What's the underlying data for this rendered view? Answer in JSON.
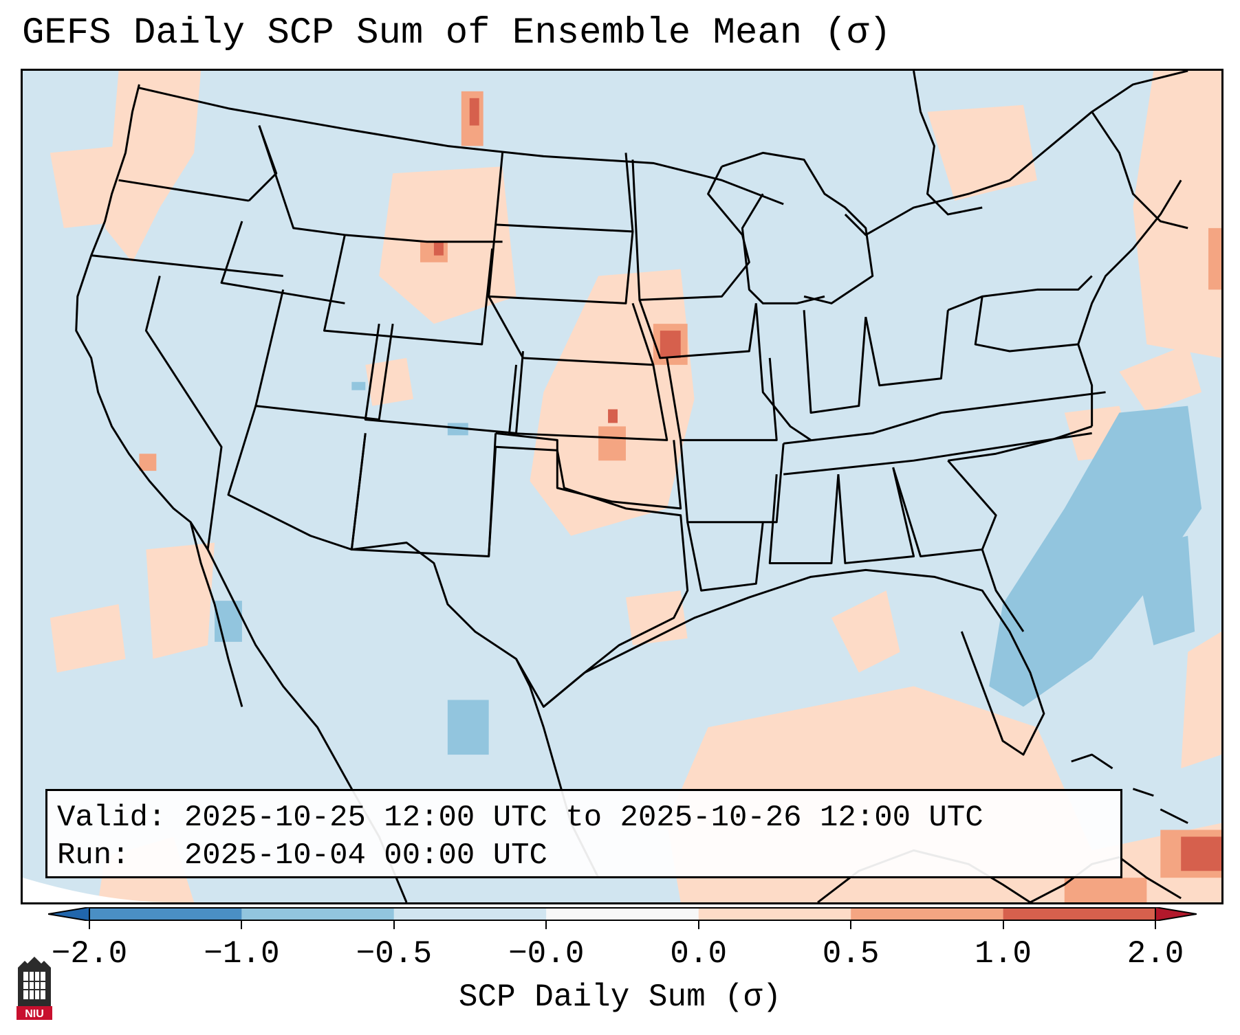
{
  "title": "GEFS Daily SCP Sum of Ensemble Mean (σ)",
  "info": {
    "valid_label": "Valid:",
    "valid_value": "2025-10-25 12:00 UTC to 2025-10-26 12:00 UTC",
    "run_label": "Run:",
    "run_value": "2025-10-04 00:00 UTC"
  },
  "colorbar": {
    "label": "SCP Daily Sum (σ)",
    "ticks": [
      "−2.0",
      "−1.0",
      "−0.5",
      "−0.0",
      "0.0",
      "0.5",
      "1.0",
      "2.0"
    ],
    "bins": [
      {
        "from": "-2.0",
        "to": "-1.0",
        "color": "#4a8fc4"
      },
      {
        "from": "-1.0",
        "to": "-0.5",
        "color": "#92c5de"
      },
      {
        "from": "-0.5",
        "to": "-0.0",
        "color": "#d1e5f0"
      },
      {
        "from": "-0.0",
        "to": "0.0",
        "color": "#f7f7f7"
      },
      {
        "from": "0.0",
        "to": "0.5",
        "color": "#fddbc7"
      },
      {
        "from": "0.5",
        "to": "1.0",
        "color": "#f4a582"
      },
      {
        "from": "1.0",
        "to": "2.0",
        "color": "#d6604d"
      }
    ],
    "under_color": "#2166ac",
    "over_color": "#b2182b"
  },
  "logo_text": "NIU",
  "map": {
    "background_color": "#d1e5f0",
    "positive_color": "#fddbc7",
    "moderate_color": "#f4a582",
    "strong_color": "#d6604d",
    "negative_color": "#92c5de"
  }
}
